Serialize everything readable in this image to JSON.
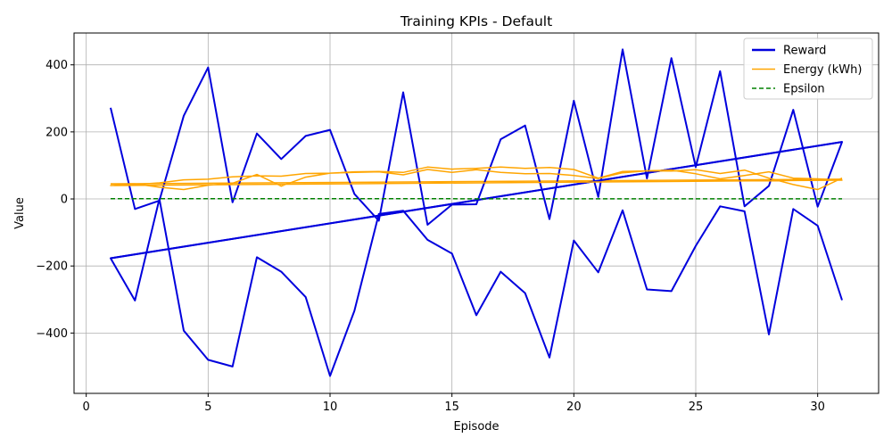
{
  "chart_data": {
    "type": "line",
    "title": "Training KPIs - Default",
    "xlabel": "Episode",
    "ylabel": "Value",
    "xlim": [
      -0.5,
      32.5
    ],
    "ylim": [
      -580,
      495
    ],
    "xticks": [
      0,
      5,
      10,
      15,
      20,
      25,
      30
    ],
    "yticks": [
      -400,
      -200,
      0,
      200,
      400
    ],
    "grid": true,
    "legend_position": "top-right",
    "series": [
      {
        "name": "Reward",
        "color": "#0000dd",
        "style": "solid",
        "x": [
          1,
          2,
          3,
          4,
          5,
          6,
          7,
          8,
          9,
          10,
          11,
          12,
          13,
          14,
          15,
          16,
          17,
          18,
          19,
          20,
          21,
          22,
          23,
          24,
          25,
          26,
          27,
          28,
          29,
          30,
          31,
          1,
          2,
          3,
          4,
          5,
          6,
          7,
          8,
          9,
          10,
          11,
          12,
          13,
          14,
          15,
          16,
          17,
          18,
          19,
          20,
          21,
          22,
          23,
          24,
          25,
          26,
          27,
          28,
          29,
          30,
          31
        ],
        "y": [
          272,
          -30,
          -5,
          248,
          392,
          -10,
          195,
          119,
          188,
          206,
          15,
          -65,
          318,
          -77,
          -17,
          -16,
          178,
          219,
          -60,
          293,
          6,
          446,
          61,
          420,
          95,
          381,
          -22,
          39,
          266,
          -23,
          170,
          -177,
          -303,
          0,
          -393,
          -480,
          -500,
          -174,
          -217,
          -293,
          -528,
          -334,
          -45,
          -35,
          -122,
          -163,
          -347,
          -217,
          -281,
          -473,
          -124,
          -219,
          -34,
          -270,
          -275,
          -140,
          -22,
          -37,
          -404,
          -30,
          -80,
          -302
        ]
      },
      {
        "name": "Energy (kWh)",
        "color": "#ffa500",
        "style": "solid",
        "x": [
          1,
          2,
          3,
          4,
          5,
          6,
          7,
          8,
          9,
          10,
          11,
          12,
          13,
          14,
          15,
          16,
          17,
          18,
          19,
          20,
          21,
          22,
          23,
          24,
          25,
          26,
          27,
          28,
          29,
          30,
          31,
          1,
          2,
          3,
          4,
          5,
          6,
          7,
          8,
          9,
          10,
          11,
          12,
          13,
          14,
          15,
          16,
          17,
          18,
          19,
          20,
          21,
          22,
          23,
          24,
          25,
          26,
          27,
          28,
          29,
          30,
          31
        ],
        "y": [
          45,
          45,
          35,
          28,
          41,
          47,
          73,
          38,
          65,
          77,
          79,
          81,
          72,
          88,
          79,
          87,
          79,
          75,
          76,
          70,
          61,
          78,
          84,
          86,
          75,
          60,
          70,
          81,
          62,
          60,
          56,
          40,
          43,
          48,
          57,
          59,
          66,
          69,
          68,
          76,
          77,
          81,
          82,
          79,
          95,
          89,
          91,
          95,
          91,
          94,
          88,
          62,
          82,
          84,
          83,
          87,
          76,
          86,
          62,
          43,
          28,
          62
        ]
      },
      {
        "name": "Epsilon",
        "color": "#008000",
        "style": "dashed",
        "x": [
          1,
          2,
          3,
          4,
          5,
          6,
          7,
          8,
          9,
          10,
          11,
          12,
          13,
          14,
          15,
          16,
          17,
          18,
          19,
          20,
          21,
          22,
          23,
          24,
          25,
          26,
          27,
          28,
          29,
          30,
          31
        ],
        "y": [
          1.0,
          0.95,
          0.9,
          0.86,
          0.81,
          0.77,
          0.74,
          0.7,
          0.66,
          0.63,
          0.6,
          0.57,
          0.54,
          0.51,
          0.49,
          0.46,
          0.44,
          0.42,
          0.4,
          0.38,
          0.36,
          0.34,
          0.32,
          0.31,
          0.29,
          0.28,
          0.26,
          0.25,
          0.24,
          0.23,
          0.21
        ]
      }
    ],
    "trend_lines": [
      {
        "series": "Reward",
        "color": "#0000dd",
        "x": [
          1,
          31
        ],
        "y": [
          -177,
          170
        ]
      },
      {
        "series": "Energy (kWh)",
        "color": "#ffa500",
        "x": [
          1,
          31
        ],
        "y": [
          45,
          59
        ]
      }
    ]
  }
}
